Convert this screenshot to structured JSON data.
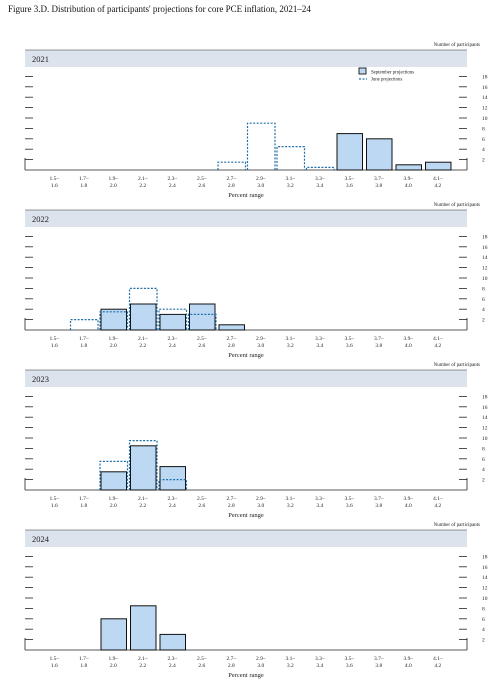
{
  "figure_title": "Figure 3.D. Distribution of participants' projections for core PCE inflation, 2021–24",
  "colors": {
    "bar_fill": "#bcd8f3",
    "bar_stroke": "#111111",
    "june_line": "#1f6fa8",
    "header_band": "#dce3ec"
  },
  "chart_data": [
    {
      "type": "bar",
      "title": "2021",
      "xlabel": "Percent range",
      "ylabel": "Number of participants",
      "ylim": [
        0,
        18
      ],
      "yticks": [
        2,
        4,
        6,
        8,
        10,
        12,
        14,
        16,
        18
      ],
      "categories": [
        "1.5–1.6",
        "1.7–1.8",
        "1.9–2.0",
        "2.1–2.2",
        "2.3–2.4",
        "2.5–2.6",
        "2.7–2.8",
        "2.9–3.0",
        "3.1–3.2",
        "3.3–3.4",
        "3.5–3.6",
        "3.7–3.8",
        "3.9–4.0",
        "4.1–4.2"
      ],
      "category_top": [
        "1.5–",
        "1.7–",
        "1.9–",
        "2.1–",
        "2.3–",
        "2.5–",
        "2.7–",
        "2.9–",
        "3.1–",
        "3.3–",
        "3.5–",
        "3.7–",
        "3.9–",
        "4.1–"
      ],
      "category_bottom": [
        "1.6",
        "1.8",
        "2.0",
        "2.2",
        "2.4",
        "2.6",
        "2.8",
        "3.0",
        "3.2",
        "3.4",
        "3.6",
        "3.8",
        "4.0",
        "4.2"
      ],
      "legend": {
        "position": "top-right",
        "entries": [
          "September projections",
          "June projections"
        ]
      },
      "series": [
        {
          "name": "September projections",
          "style": "bar",
          "values": [
            0,
            0,
            0,
            0,
            0,
            0,
            0,
            0,
            0,
            0,
            7,
            6,
            1,
            1.5
          ]
        },
        {
          "name": "June projections",
          "style": "dashed-step",
          "values": [
            0,
            0,
            0,
            0,
            0,
            0,
            1.5,
            9,
            4.5,
            0.5,
            0,
            0,
            0,
            0
          ]
        }
      ]
    },
    {
      "type": "bar",
      "title": "2022",
      "xlabel": "Percent range",
      "ylabel": "Number of participants",
      "ylim": [
        0,
        18
      ],
      "yticks": [
        2,
        4,
        6,
        8,
        10,
        12,
        14,
        16,
        18
      ],
      "categories": [
        "1.5–1.6",
        "1.7–1.8",
        "1.9–2.0",
        "2.1–2.2",
        "2.3–2.4",
        "2.5–2.6",
        "2.7–2.8",
        "2.9–3.0",
        "3.1–3.2",
        "3.3–3.4",
        "3.5–3.6",
        "3.7–3.8",
        "3.9–4.0",
        "4.1–4.2"
      ],
      "category_top": [
        "1.5–",
        "1.7–",
        "1.9–",
        "2.1–",
        "2.3–",
        "2.5–",
        "2.7–",
        "2.9–",
        "3.1–",
        "3.3–",
        "3.5–",
        "3.7–",
        "3.9–",
        "4.1–"
      ],
      "category_bottom": [
        "1.6",
        "1.8",
        "2.0",
        "2.2",
        "2.4",
        "2.6",
        "2.8",
        "3.0",
        "3.2",
        "3.4",
        "3.6",
        "3.8",
        "4.0",
        "4.2"
      ],
      "series": [
        {
          "name": "September projections",
          "style": "bar",
          "values": [
            0,
            0,
            4,
            5,
            3,
            5,
            1,
            0,
            0,
            0,
            0,
            0,
            0,
            0
          ]
        },
        {
          "name": "June projections",
          "style": "dashed-step",
          "values": [
            0,
            2,
            3.5,
            8,
            4,
            3,
            0,
            0,
            0,
            0,
            0,
            0,
            0,
            0
          ]
        }
      ]
    },
    {
      "type": "bar",
      "title": "2023",
      "xlabel": "Percent range",
      "ylabel": "Number of participants",
      "ylim": [
        0,
        18
      ],
      "yticks": [
        2,
        4,
        6,
        8,
        10,
        12,
        14,
        16,
        18
      ],
      "categories": [
        "1.5–1.6",
        "1.7–1.8",
        "1.9–2.0",
        "2.1–2.2",
        "2.3–2.4",
        "2.5–2.6",
        "2.7–2.8",
        "2.9–3.0",
        "3.1–3.2",
        "3.3–3.4",
        "3.5–3.6",
        "3.7–3.8",
        "3.9–4.0",
        "4.1–4.2"
      ],
      "category_top": [
        "1.5–",
        "1.7–",
        "1.9–",
        "2.1–",
        "2.3–",
        "2.5–",
        "2.7–",
        "2.9–",
        "3.1–",
        "3.3–",
        "3.5–",
        "3.7–",
        "3.9–",
        "4.1–"
      ],
      "category_bottom": [
        "1.6",
        "1.8",
        "2.0",
        "2.2",
        "2.4",
        "2.6",
        "2.8",
        "3.0",
        "3.2",
        "3.4",
        "3.6",
        "3.8",
        "4.0",
        "4.2"
      ],
      "series": [
        {
          "name": "September projections",
          "style": "bar",
          "values": [
            0,
            0,
            3.5,
            8.5,
            4.5,
            0,
            0,
            0,
            0,
            0,
            0,
            0,
            0,
            0
          ]
        },
        {
          "name": "June projections",
          "style": "dashed-step",
          "values": [
            0,
            0,
            5.5,
            9.5,
            2,
            0,
            0,
            0,
            0,
            0,
            0,
            0,
            0,
            0
          ]
        }
      ]
    },
    {
      "type": "bar",
      "title": "2024",
      "xlabel": "Percent range",
      "ylabel": "Number of participants",
      "ylim": [
        0,
        18
      ],
      "yticks": [
        2,
        4,
        6,
        8,
        10,
        12,
        14,
        16,
        18
      ],
      "categories": [
        "1.5–1.6",
        "1.7–1.8",
        "1.9–2.0",
        "2.1–2.2",
        "2.3–2.4",
        "2.5–2.6",
        "2.7–2.8",
        "2.9–3.0",
        "3.1–3.2",
        "3.3–3.4",
        "3.5–3.6",
        "3.7–3.8",
        "3.9–4.0",
        "4.1–4.2"
      ],
      "category_top": [
        "1.5–",
        "1.7–",
        "1.9–",
        "2.1–",
        "2.3–",
        "2.5–",
        "2.7–",
        "2.9–",
        "3.1–",
        "3.3–",
        "3.5–",
        "3.7–",
        "3.9–",
        "4.1–"
      ],
      "category_bottom": [
        "1.6",
        "1.8",
        "2.0",
        "2.2",
        "2.4",
        "2.6",
        "2.8",
        "3.0",
        "3.2",
        "3.4",
        "3.6",
        "3.8",
        "4.0",
        "4.2"
      ],
      "series": [
        {
          "name": "September projections",
          "style": "bar",
          "values": [
            0,
            0,
            6,
            8.5,
            3,
            0,
            0,
            0,
            0,
            0,
            0,
            0,
            0,
            0
          ]
        }
      ]
    }
  ]
}
